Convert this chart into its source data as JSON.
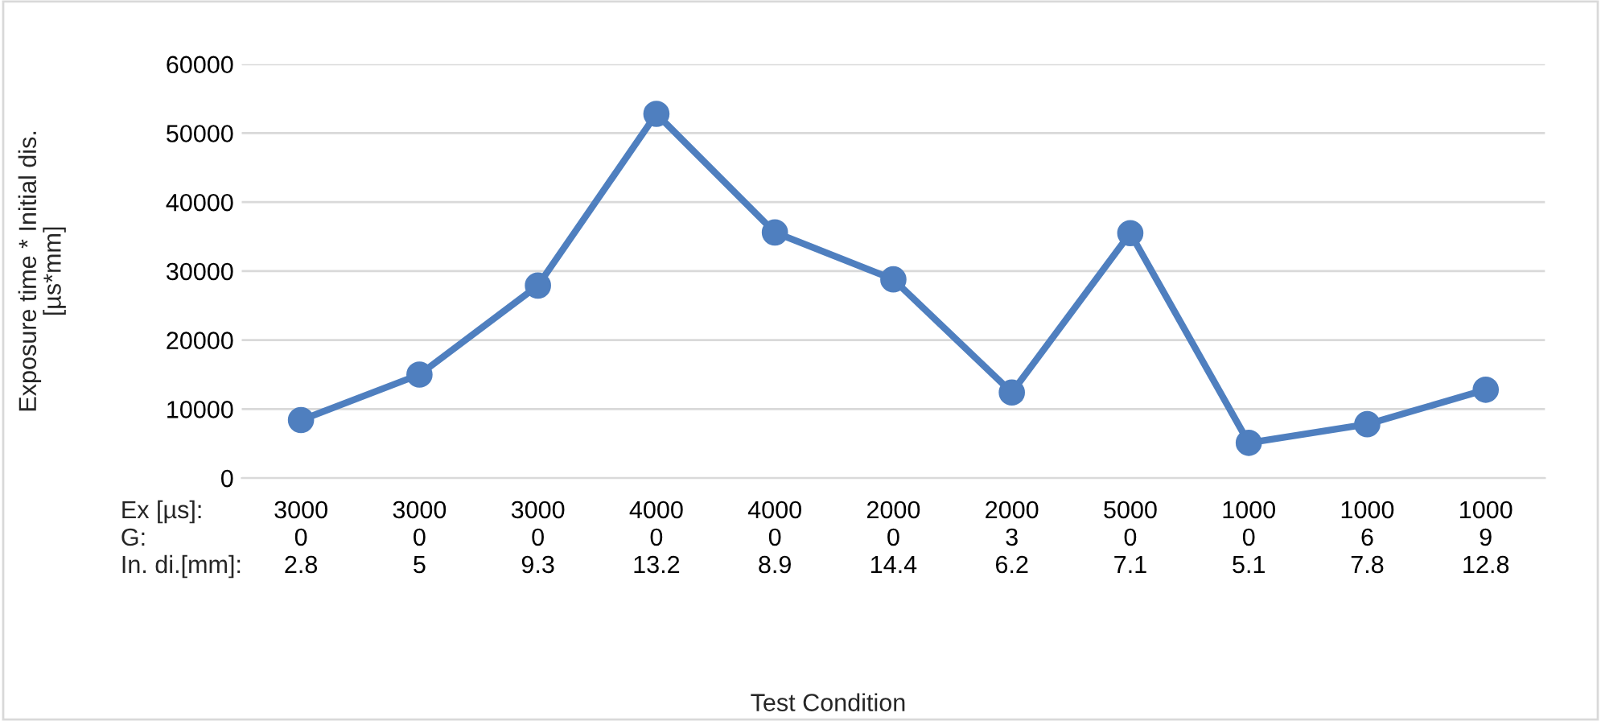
{
  "chart_data": {
    "type": "line",
    "xlabel": "Test Condition",
    "ylabel": "Exposure time * Initial dis.\n[µs*mm]",
    "categories": [
      "3000\n0\n2.8",
      "3000\n0\n5",
      "3000\n0\n9.3",
      "4000\n0\n13.2",
      "4000\n0\n8.9",
      "2000\n0\n14.4",
      "2000\n3\n6.2",
      "5000\n0\n7.1",
      "1000\n0\n5.1",
      "1000\n6\n7.8",
      "1000\n9\n12.8"
    ],
    "series": [
      {
        "color": "#4f7fbf",
        "values": [
          8400,
          15000,
          27900,
          52800,
          35600,
          28800,
          12400,
          35500,
          5100,
          7800,
          12800
        ]
      }
    ],
    "ylim": [
      0,
      60000
    ],
    "yticks": [
      0,
      10000,
      20000,
      30000,
      40000,
      50000,
      60000
    ],
    "grid": "y",
    "marker": "circle",
    "line_style": "solid",
    "legend": false,
    "annotations": [
      "Ex [µs]:",
      "G:",
      "In. di.[mm]:"
    ]
  }
}
